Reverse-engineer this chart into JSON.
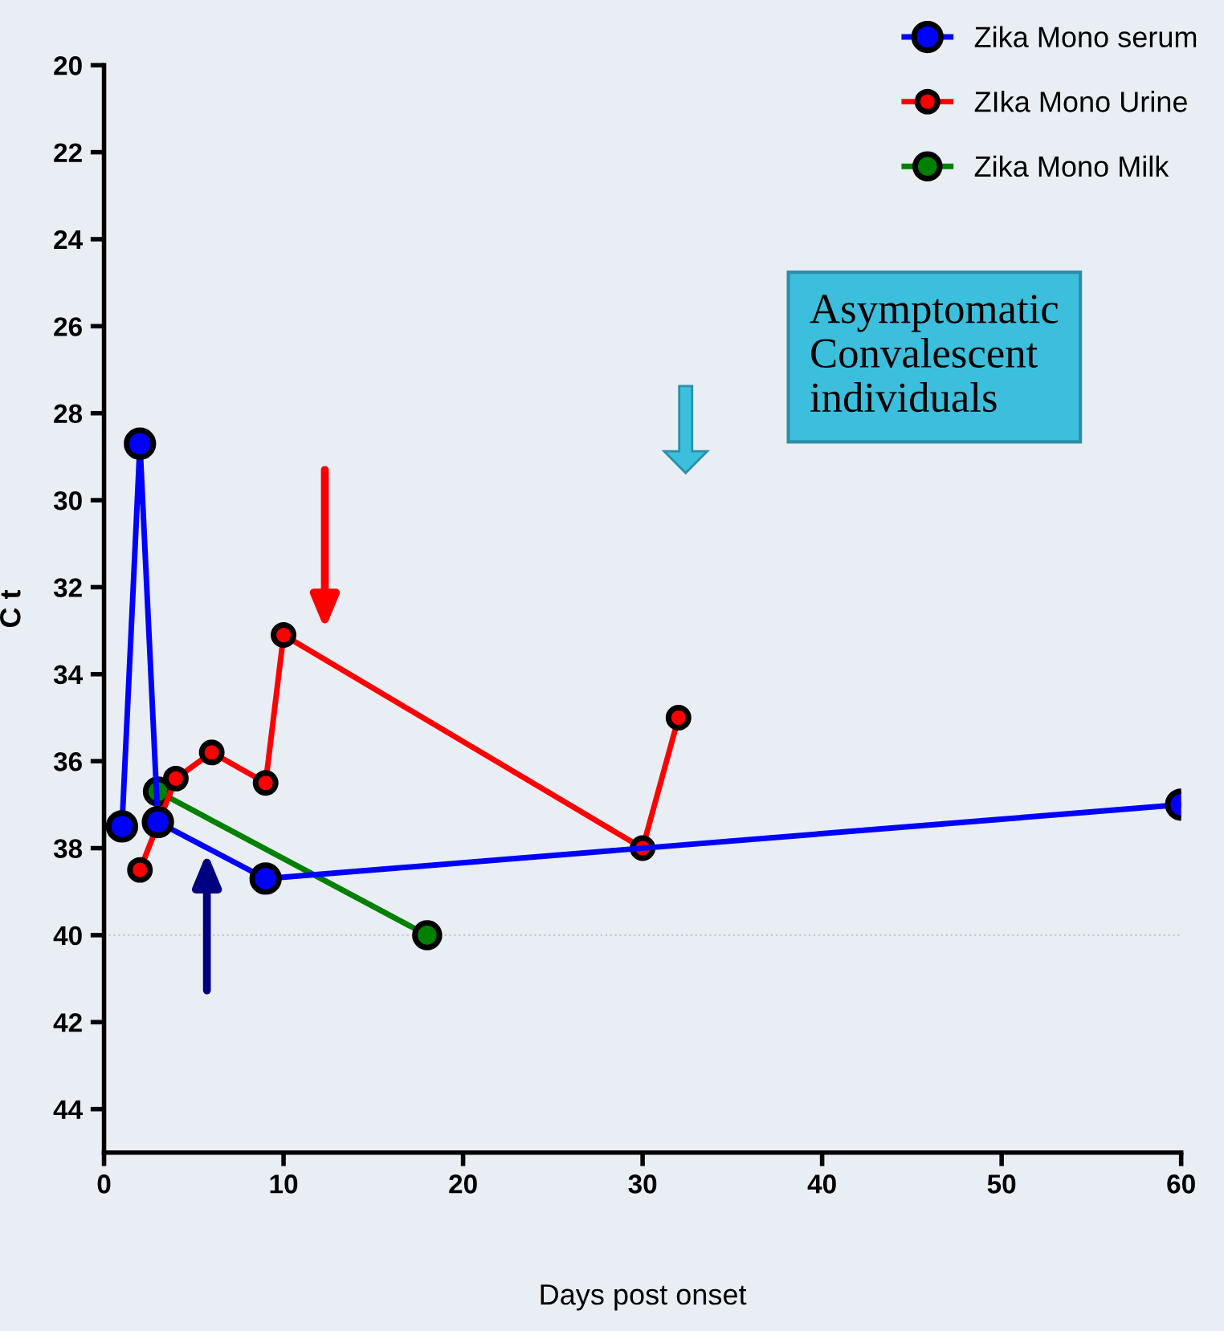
{
  "chart_data": {
    "type": "line",
    "xlabel": "Days post onset",
    "ylabel": "C t",
    "series": [
      {
        "name": "Zika Mono serum",
        "color": "#0000ff",
        "x": [
          1,
          2,
          3,
          9,
          60
        ],
        "values": [
          37.5,
          28.7,
          37.4,
          38.7,
          37.0
        ]
      },
      {
        "name": "ZIka Mono Urine",
        "color": "#ff0000",
        "x": [
          2,
          4,
          6,
          9,
          10,
          30,
          32
        ],
        "values": [
          38.5,
          36.4,
          35.8,
          36.5,
          33.1,
          38.0,
          35.0
        ]
      },
      {
        "name": "Zika Mono Milk",
        "color": "#008000",
        "x": [
          3,
          18
        ],
        "values": [
          36.7,
          40.0
        ]
      }
    ],
    "xlim": [
      0,
      60
    ],
    "xticks": [
      0,
      10,
      20,
      30,
      40,
      50,
      60
    ],
    "ylim": [
      45,
      20
    ],
    "yticks": [
      20,
      22,
      24,
      26,
      28,
      30,
      32,
      34,
      36,
      38,
      40,
      42,
      44
    ],
    "ref_lines": [
      {
        "axis": "y",
        "value": 40,
        "color": "#c8c8c8",
        "line_style": "dotted"
      }
    ],
    "annotations": [
      "Asymptomatic\nConvalescent\nindividuals"
    ],
    "marker": "circle",
    "line_style": "solid",
    "legend": "top right",
    "grid": false
  }
}
